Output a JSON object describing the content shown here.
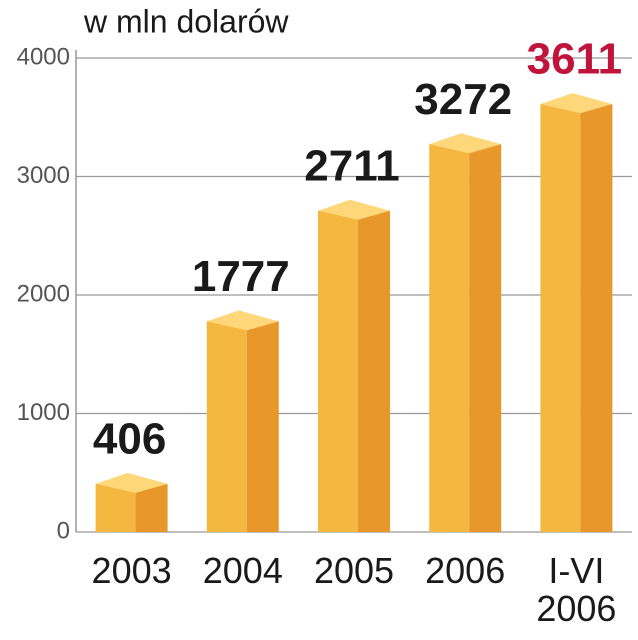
{
  "chart_data": {
    "type": "bar3d",
    "title": "w mln dolarów",
    "categories": [
      "2003",
      "2004",
      "2005",
      "2006",
      "I-VI 2006"
    ],
    "values": [
      406,
      1777,
      2711,
      3272,
      3611
    ],
    "value_label_colors": [
      "#1a1a1a",
      "#1a1a1a",
      "#1a1a1a",
      "#1a1a1a",
      "#c0143c"
    ],
    "colors": {
      "front": "#f4b740",
      "side": "#e8982a",
      "top": "#fdd77a"
    },
    "ylim": [
      0,
      4000
    ],
    "yticks": [
      0,
      1000,
      2000,
      3000,
      4000
    ],
    "grid": true
  }
}
